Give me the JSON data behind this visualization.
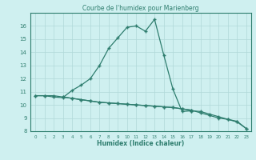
{
  "title": "Courbe de l'humidex pour Marienberg",
  "xlabel": "Humidex (Indice chaleur)",
  "x_values": [
    0,
    1,
    2,
    3,
    4,
    5,
    6,
    7,
    8,
    9,
    10,
    11,
    12,
    13,
    14,
    15,
    16,
    17,
    18,
    19,
    20,
    21,
    22,
    23
  ],
  "line1_y": [
    10.7,
    10.7,
    10.7,
    10.6,
    10.5,
    10.4,
    10.3,
    10.2,
    10.15,
    10.1,
    10.05,
    10.0,
    9.95,
    9.9,
    9.85,
    9.8,
    9.7,
    9.6,
    9.4,
    9.2,
    9.0,
    8.9,
    8.7,
    8.2
  ],
  "line2_y": [
    null,
    null,
    null,
    null,
    null,
    null,
    null,
    null,
    null,
    null,
    null,
    null,
    null,
    null,
    null,
    null,
    null,
    9.55,
    9.5,
    9.3,
    9.1,
    8.9,
    8.75,
    8.2
  ],
  "line3_y": [
    null,
    null,
    null,
    10.6,
    10.5,
    10.4,
    10.3,
    10.2,
    10.15,
    10.1,
    10.05,
    10.0,
    9.95,
    9.9,
    9.85,
    9.8,
    9.7,
    9.6,
    null,
    null,
    null,
    null,
    null,
    null
  ],
  "curve_x": [
    0,
    1,
    2,
    3,
    4,
    5,
    6,
    7,
    8,
    9,
    10,
    11,
    12,
    13,
    14,
    15,
    16,
    17
  ],
  "curve_y": [
    10.7,
    10.7,
    10.6,
    10.55,
    11.1,
    11.5,
    12.0,
    13.0,
    14.3,
    15.1,
    15.9,
    16.0,
    15.6,
    16.5,
    13.8,
    11.2,
    9.5,
    9.55
  ],
  "line_color": "#2e7d6e",
  "bg_color": "#cff0f0",
  "grid_color": "#b0d8d8",
  "ylim": [
    8,
    17
  ],
  "xlim": [
    -0.5,
    23.5
  ],
  "yticks": [
    8,
    9,
    10,
    11,
    12,
    13,
    14,
    15,
    16
  ],
  "xticks": [
    0,
    1,
    2,
    3,
    4,
    5,
    6,
    7,
    8,
    9,
    10,
    11,
    12,
    13,
    14,
    15,
    16,
    17,
    18,
    19,
    20,
    21,
    22,
    23
  ]
}
